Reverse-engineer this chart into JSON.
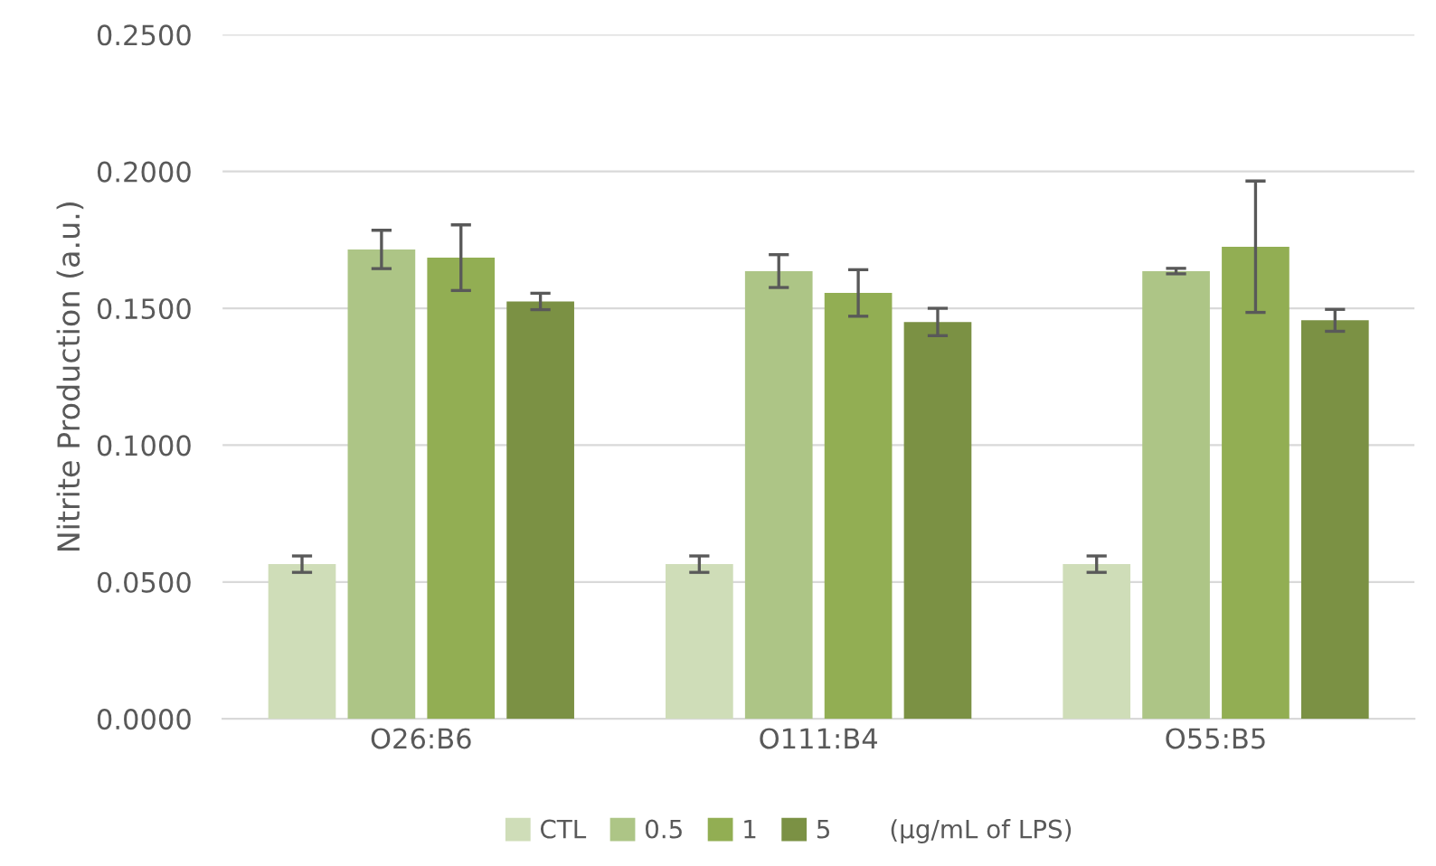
{
  "chart_data": {
    "type": "bar",
    "ylabel": "Nitrite Production (a.u.)",
    "legend_title": "(μg/mL of LPS)",
    "categories": [
      "O26:B6",
      "O111:B4",
      "O55:B5"
    ],
    "series": [
      {
        "name": "CTL",
        "color": "#cfddb8",
        "values": [
          0.0565,
          0.0565,
          0.0565
        ],
        "errors": [
          0.003,
          0.003,
          0.003
        ]
      },
      {
        "name": "0.5",
        "color": "#adc586",
        "values": [
          0.1715,
          0.1636,
          0.1636
        ],
        "errors": [
          0.007,
          0.006,
          0.001
        ]
      },
      {
        "name": "1",
        "color": "#92ae53",
        "values": [
          0.1685,
          0.1556,
          0.1725
        ],
        "errors": [
          0.012,
          0.0085,
          0.024
        ]
      },
      {
        "name": "5",
        "color": "#7b9144",
        "values": [
          0.1525,
          0.145,
          0.1456
        ],
        "errors": [
          0.003,
          0.005,
          0.004
        ]
      }
    ],
    "ylim": [
      0,
      0.25
    ],
    "yticks": [
      {
        "value": 0,
        "label": "0.0000"
      },
      {
        "value": 0.05,
        "label": "0.0500"
      },
      {
        "value": 0.1,
        "label": "0.1000"
      },
      {
        "value": 0.15,
        "label": "0.1500"
      },
      {
        "value": 0.2,
        "label": "0.2000"
      },
      {
        "value": 0.25,
        "label": "0.2500"
      }
    ],
    "grid": "y",
    "legend": "bottom"
  }
}
